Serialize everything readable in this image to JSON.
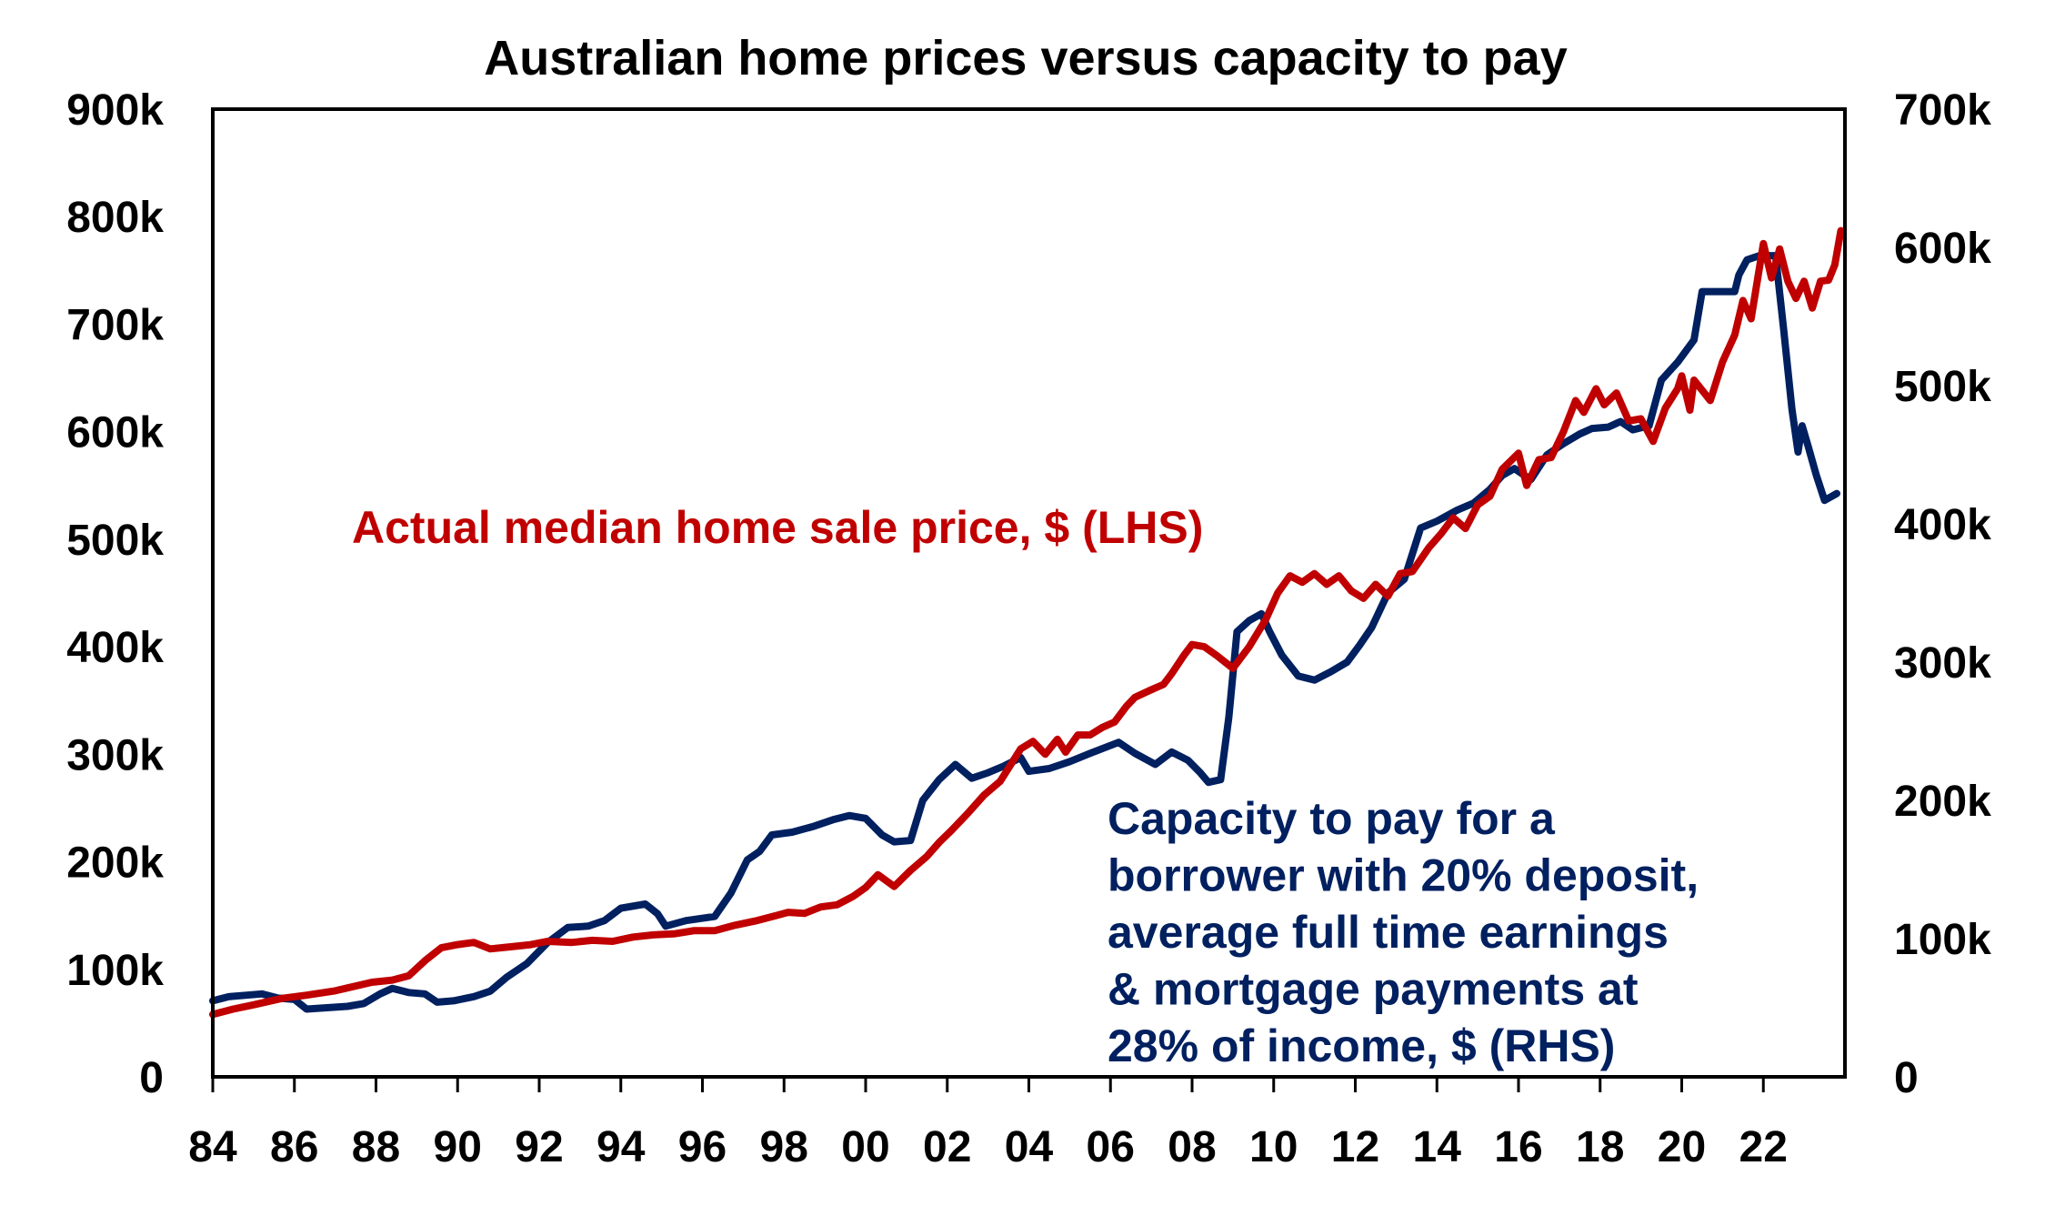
{
  "chart_data": {
    "type": "line",
    "title": "Australian home prices versus capacity to pay",
    "xlabel": "",
    "ylabel_left": "",
    "ylabel_right": "",
    "x_range": [
      1984,
      2024
    ],
    "x_ticks": [
      1984,
      1986,
      1988,
      1990,
      1992,
      1994,
      1996,
      1998,
      2000,
      2002,
      2004,
      2006,
      2008,
      2010,
      2012,
      2014,
      2016,
      2018,
      2020,
      2022
    ],
    "x_tick_labels": [
      "84",
      "86",
      "88",
      "90",
      "92",
      "94",
      "96",
      "98",
      "00",
      "02",
      "04",
      "06",
      "08",
      "10",
      "12",
      "14",
      "16",
      "18",
      "20",
      "22"
    ],
    "y_left": {
      "range": [
        0,
        900000
      ],
      "ticks": [
        0,
        100000,
        200000,
        300000,
        400000,
        500000,
        600000,
        700000,
        800000,
        900000
      ],
      "tick_labels": [
        "0",
        "100k",
        "200k",
        "300k",
        "400k",
        "500k",
        "600k",
        "700k",
        "800k",
        "900k"
      ]
    },
    "y_right": {
      "range": [
        0,
        700000
      ],
      "ticks": [
        0,
        100000,
        200000,
        300000,
        400000,
        500000,
        600000,
        700000
      ],
      "tick_labels": [
        "0",
        "100k",
        "200k",
        "300k",
        "400k",
        "500k",
        "600k",
        "700k"
      ]
    },
    "grid": false,
    "legend": "inline annotations",
    "series": [
      {
        "name": "Actual median home sale price, $ (LHS)",
        "axis": "left",
        "color": "#C00000",
        "label_lines": [
          "Actual median home sale price, $ (LHS)"
        ],
        "points": [
          [
            1984.0,
            58000
          ],
          [
            1984.5,
            63000
          ],
          [
            1985.0,
            67000
          ],
          [
            1985.7,
            73000
          ],
          [
            1986.3,
            76000
          ],
          [
            1987.0,
            80000
          ],
          [
            1987.9,
            88000
          ],
          [
            1988.4,
            90000
          ],
          [
            1988.8,
            94000
          ],
          [
            1989.2,
            108000
          ],
          [
            1989.6,
            120000
          ],
          [
            1990.0,
            123000
          ],
          [
            1990.4,
            125000
          ],
          [
            1990.8,
            119000
          ],
          [
            1991.3,
            121000
          ],
          [
            1991.8,
            123000
          ],
          [
            1992.2,
            126000
          ],
          [
            1992.8,
            125000
          ],
          [
            1993.3,
            127000
          ],
          [
            1993.8,
            126000
          ],
          [
            1994.3,
            130000
          ],
          [
            1994.8,
            132000
          ],
          [
            1995.3,
            133000
          ],
          [
            1995.8,
            136000
          ],
          [
            1996.3,
            136000
          ],
          [
            1996.8,
            141000
          ],
          [
            1997.3,
            145000
          ],
          [
            1997.8,
            150000
          ],
          [
            1998.1,
            153000
          ],
          [
            1998.5,
            152000
          ],
          [
            1998.9,
            158000
          ],
          [
            1999.3,
            160000
          ],
          [
            1999.7,
            168000
          ],
          [
            2000.0,
            176000
          ],
          [
            2000.3,
            188000
          ],
          [
            2000.7,
            177000
          ],
          [
            2001.1,
            192000
          ],
          [
            2001.5,
            205000
          ],
          [
            2001.8,
            218000
          ],
          [
            2002.1,
            229000
          ],
          [
            2002.5,
            245000
          ],
          [
            2002.9,
            262000
          ],
          [
            2003.3,
            275000
          ],
          [
            2003.8,
            305000
          ],
          [
            2004.1,
            312000
          ],
          [
            2004.4,
            300000
          ],
          [
            2004.7,
            314000
          ],
          [
            2004.9,
            302000
          ],
          [
            2005.2,
            318000
          ],
          [
            2005.5,
            318000
          ],
          [
            2005.8,
            325000
          ],
          [
            2006.1,
            330000
          ],
          [
            2006.4,
            345000
          ],
          [
            2006.6,
            353000
          ],
          [
            2007.0,
            360000
          ],
          [
            2007.3,
            365000
          ],
          [
            2007.5,
            375000
          ],
          [
            2007.8,
            392000
          ],
          [
            2008.0,
            402000
          ],
          [
            2008.3,
            400000
          ],
          [
            2008.6,
            392000
          ],
          [
            2009.0,
            380000
          ],
          [
            2009.4,
            400000
          ],
          [
            2009.8,
            425000
          ],
          [
            2010.1,
            450000
          ],
          [
            2010.4,
            466000
          ],
          [
            2010.7,
            460000
          ],
          [
            2011.0,
            468000
          ],
          [
            2011.3,
            458000
          ],
          [
            2011.6,
            466000
          ],
          [
            2011.9,
            452000
          ],
          [
            2012.2,
            445000
          ],
          [
            2012.5,
            458000
          ],
          [
            2012.8,
            447000
          ],
          [
            2013.1,
            468000
          ],
          [
            2013.4,
            470000
          ],
          [
            2013.8,
            492000
          ],
          [
            2014.1,
            505000
          ],
          [
            2014.4,
            520000
          ],
          [
            2014.7,
            510000
          ],
          [
            2015.0,
            532000
          ],
          [
            2015.3,
            540000
          ],
          [
            2015.6,
            565000
          ],
          [
            2016.0,
            580000
          ],
          [
            2016.2,
            550000
          ],
          [
            2016.5,
            574000
          ],
          [
            2016.8,
            576000
          ],
          [
            2017.1,
            600000
          ],
          [
            2017.4,
            629000
          ],
          [
            2017.6,
            618000
          ],
          [
            2017.9,
            640000
          ],
          [
            2018.1,
            625000
          ],
          [
            2018.4,
            636000
          ],
          [
            2018.7,
            610000
          ],
          [
            2019.0,
            612000
          ],
          [
            2019.3,
            591000
          ],
          [
            2019.6,
            622000
          ],
          [
            2019.9,
            640000
          ],
          [
            2020.0,
            652000
          ],
          [
            2020.2,
            620000
          ],
          [
            2020.3,
            648000
          ],
          [
            2020.7,
            629000
          ],
          [
            2021.0,
            665000
          ],
          [
            2021.3,
            690000
          ],
          [
            2021.5,
            722000
          ],
          [
            2021.7,
            705000
          ],
          [
            2022.0,
            775000
          ],
          [
            2022.2,
            743000
          ],
          [
            2022.4,
            770000
          ],
          [
            2022.6,
            740000
          ],
          [
            2022.8,
            724000
          ],
          [
            2023.0,
            740000
          ],
          [
            2023.2,
            715000
          ],
          [
            2023.4,
            740000
          ],
          [
            2023.6,
            741000
          ],
          [
            2023.75,
            755000
          ],
          [
            2023.9,
            787000
          ]
        ]
      },
      {
        "name": "Capacity to pay for a borrower with 20% deposit, average full time earnings & mortgage payments at 28% of income, $ (RHS)",
        "axis": "right",
        "color": "#002060",
        "label_lines": [
          "Capacity to pay for a",
          "borrower with 20% deposit,",
          "average full time earnings",
          "& mortgage payments at",
          "28% of income, $ (RHS)"
        ],
        "points": [
          [
            1984.0,
            55000
          ],
          [
            1984.4,
            58000
          ],
          [
            1984.8,
            59000
          ],
          [
            1985.2,
            60000
          ],
          [
            1985.6,
            57000
          ],
          [
            1986.0,
            56000
          ],
          [
            1986.3,
            49000
          ],
          [
            1986.8,
            50000
          ],
          [
            1987.3,
            51000
          ],
          [
            1987.7,
            53000
          ],
          [
            1988.1,
            60000
          ],
          [
            1988.4,
            64000
          ],
          [
            1988.8,
            61000
          ],
          [
            1989.2,
            60000
          ],
          [
            1989.5,
            54000
          ],
          [
            1989.9,
            55000
          ],
          [
            1990.4,
            58000
          ],
          [
            1990.8,
            62000
          ],
          [
            1991.2,
            72000
          ],
          [
            1991.7,
            82000
          ],
          [
            1992.2,
            97000
          ],
          [
            1992.7,
            108000
          ],
          [
            1993.2,
            109000
          ],
          [
            1993.6,
            113000
          ],
          [
            1994.0,
            122000
          ],
          [
            1994.6,
            125000
          ],
          [
            1994.9,
            118000
          ],
          [
            1995.1,
            109000
          ],
          [
            1995.6,
            113000
          ],
          [
            1996.3,
            116000
          ],
          [
            1996.7,
            133000
          ],
          [
            1997.1,
            157000
          ],
          [
            1997.4,
            163000
          ],
          [
            1997.7,
            175000
          ],
          [
            1998.2,
            177000
          ],
          [
            1998.7,
            181000
          ],
          [
            1999.2,
            186000
          ],
          [
            1999.6,
            189000
          ],
          [
            2000.0,
            187000
          ],
          [
            2000.4,
            175000
          ],
          [
            2000.7,
            170000
          ],
          [
            2001.1,
            171000
          ],
          [
            2001.4,
            200000
          ],
          [
            2001.8,
            215000
          ],
          [
            2002.2,
            226000
          ],
          [
            2002.6,
            216000
          ],
          [
            2003.0,
            220000
          ],
          [
            2003.4,
            225000
          ],
          [
            2003.8,
            231000
          ],
          [
            2004.0,
            221000
          ],
          [
            2004.5,
            223000
          ],
          [
            2005.0,
            228000
          ],
          [
            2005.5,
            234000
          ],
          [
            2006.2,
            242000
          ],
          [
            2006.6,
            234000
          ],
          [
            2007.1,
            226000
          ],
          [
            2007.5,
            235000
          ],
          [
            2007.9,
            229000
          ],
          [
            2008.2,
            220000
          ],
          [
            2008.4,
            213000
          ],
          [
            2008.7,
            215000
          ],
          [
            2008.9,
            260000
          ],
          [
            2009.1,
            322000
          ],
          [
            2009.4,
            330000
          ],
          [
            2009.7,
            335000
          ],
          [
            2009.9,
            322000
          ],
          [
            2010.2,
            305000
          ],
          [
            2010.6,
            290000
          ],
          [
            2011.0,
            287000
          ],
          [
            2011.4,
            293000
          ],
          [
            2011.8,
            300000
          ],
          [
            2012.1,
            312000
          ],
          [
            2012.4,
            325000
          ],
          [
            2012.8,
            350000
          ],
          [
            2013.2,
            360000
          ],
          [
            2013.6,
            397000
          ],
          [
            2014.0,
            402000
          ],
          [
            2014.5,
            410000
          ],
          [
            2014.9,
            415000
          ],
          [
            2015.3,
            425000
          ],
          [
            2015.6,
            435000
          ],
          [
            2015.9,
            440000
          ],
          [
            2016.3,
            432000
          ],
          [
            2016.7,
            450000
          ],
          [
            2017.1,
            458000
          ],
          [
            2017.5,
            465000
          ],
          [
            2017.8,
            469000
          ],
          [
            2018.2,
            470000
          ],
          [
            2018.5,
            474000
          ],
          [
            2018.8,
            468000
          ],
          [
            2019.2,
            471000
          ],
          [
            2019.5,
            504000
          ],
          [
            2019.9,
            517000
          ],
          [
            2020.3,
            533000
          ],
          [
            2020.5,
            568000
          ],
          [
            2020.9,
            568000
          ],
          [
            2021.3,
            568000
          ],
          [
            2021.4,
            580000
          ],
          [
            2021.6,
            591000
          ],
          [
            2021.9,
            594000
          ],
          [
            2022.3,
            594000
          ],
          [
            2022.5,
            540000
          ],
          [
            2022.7,
            483000
          ],
          [
            2022.85,
            452000
          ],
          [
            2022.95,
            471000
          ],
          [
            2023.1,
            456000
          ],
          [
            2023.3,
            435000
          ],
          [
            2023.5,
            417000
          ],
          [
            2023.8,
            422000
          ]
        ]
      }
    ]
  }
}
